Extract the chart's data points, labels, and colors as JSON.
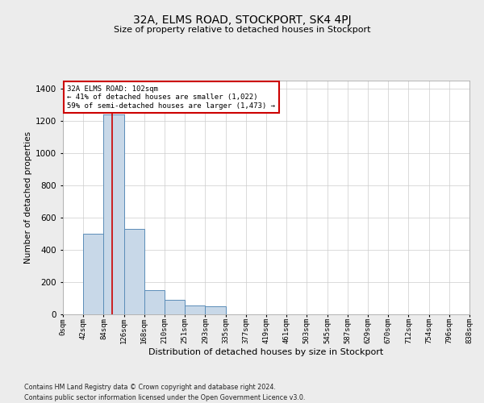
{
  "title": "32A, ELMS ROAD, STOCKPORT, SK4 4PJ",
  "subtitle": "Size of property relative to detached houses in Stockport",
  "xlabel": "Distribution of detached houses by size in Stockport",
  "ylabel": "Number of detached properties",
  "footnote1": "Contains HM Land Registry data © Crown copyright and database right 2024.",
  "footnote2": "Contains public sector information licensed under the Open Government Licence v3.0.",
  "bins": [
    "0sqm",
    "42sqm",
    "84sqm",
    "126sqm",
    "168sqm",
    "210sqm",
    "251sqm",
    "293sqm",
    "335sqm",
    "377sqm",
    "419sqm",
    "461sqm",
    "503sqm",
    "545sqm",
    "587sqm",
    "629sqm",
    "670sqm",
    "712sqm",
    "754sqm",
    "796sqm",
    "838sqm"
  ],
  "bar_values": [
    0,
    500,
    1240,
    530,
    150,
    90,
    55,
    50,
    0,
    0,
    0,
    0,
    0,
    0,
    0,
    0,
    0,
    0,
    0,
    0
  ],
  "bar_color": "#c8d8e8",
  "bar_edge_color": "#5b8db8",
  "annotation_text": "32A ELMS ROAD: 102sqm\n← 41% of detached houses are smaller (1,022)\n59% of semi-detached houses are larger (1,473) →",
  "ylim": [
    0,
    1450
  ],
  "yticks": [
    0,
    200,
    400,
    600,
    800,
    1000,
    1200,
    1400
  ],
  "bg_color": "#ececec",
  "plot_bg_color": "#ffffff",
  "grid_color": "#cccccc",
  "marker_line_color": "#cc0000",
  "annotation_box_edge_color": "#cc0000",
  "annotation_box_face_color": "#ffffff"
}
